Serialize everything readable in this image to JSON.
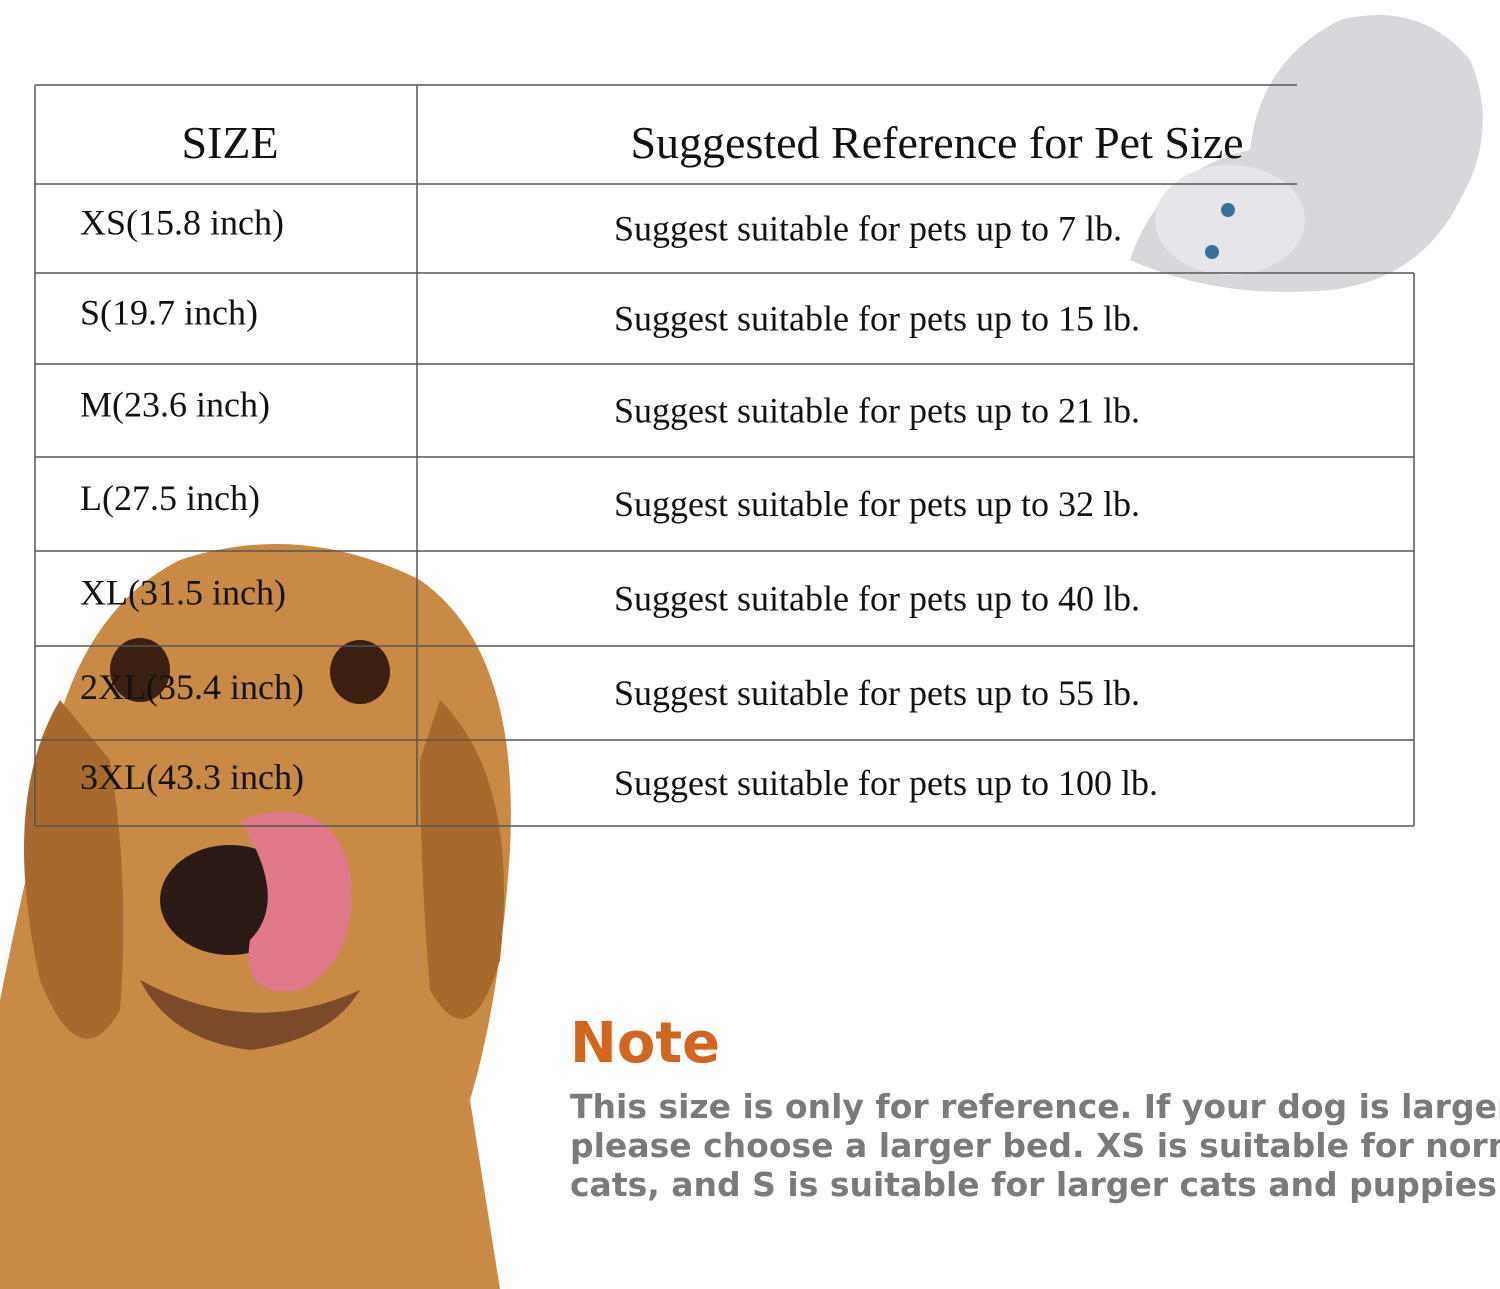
{
  "header": {
    "size": "SIZE",
    "reference": "Suggested Reference for Pet Size"
  },
  "table": {
    "rows": [
      [
        "XS(15.8 inch)",
        "Suggest suitable for pets up to 7 lb."
      ],
      [
        "S(19.7 inch)",
        "Suggest suitable for pets up to 15 lb."
      ],
      [
        "M(23.6 inch)",
        "Suggest suitable for pets up to 21 lb."
      ],
      [
        "L(27.5 inch)",
        "Suggest suitable for pets up to 32 lb."
      ],
      [
        "XL(31.5 inch)",
        "Suggest suitable for pets up to 40 lb."
      ],
      [
        "2XL(35.4 inch)",
        "Suggest suitable for pets up to 55 lb."
      ],
      [
        "3XL(43.3 inch)",
        "Suggest suitable for pets up to 100 lb."
      ]
    ]
  },
  "note": {
    "title": "Note",
    "lines": [
      "This size is only for reference. If your dog is larger,",
      "please choose a larger bed. XS is suitable for normal",
      "cats, and S is suitable for larger cats and puppies."
    ]
  }
}
